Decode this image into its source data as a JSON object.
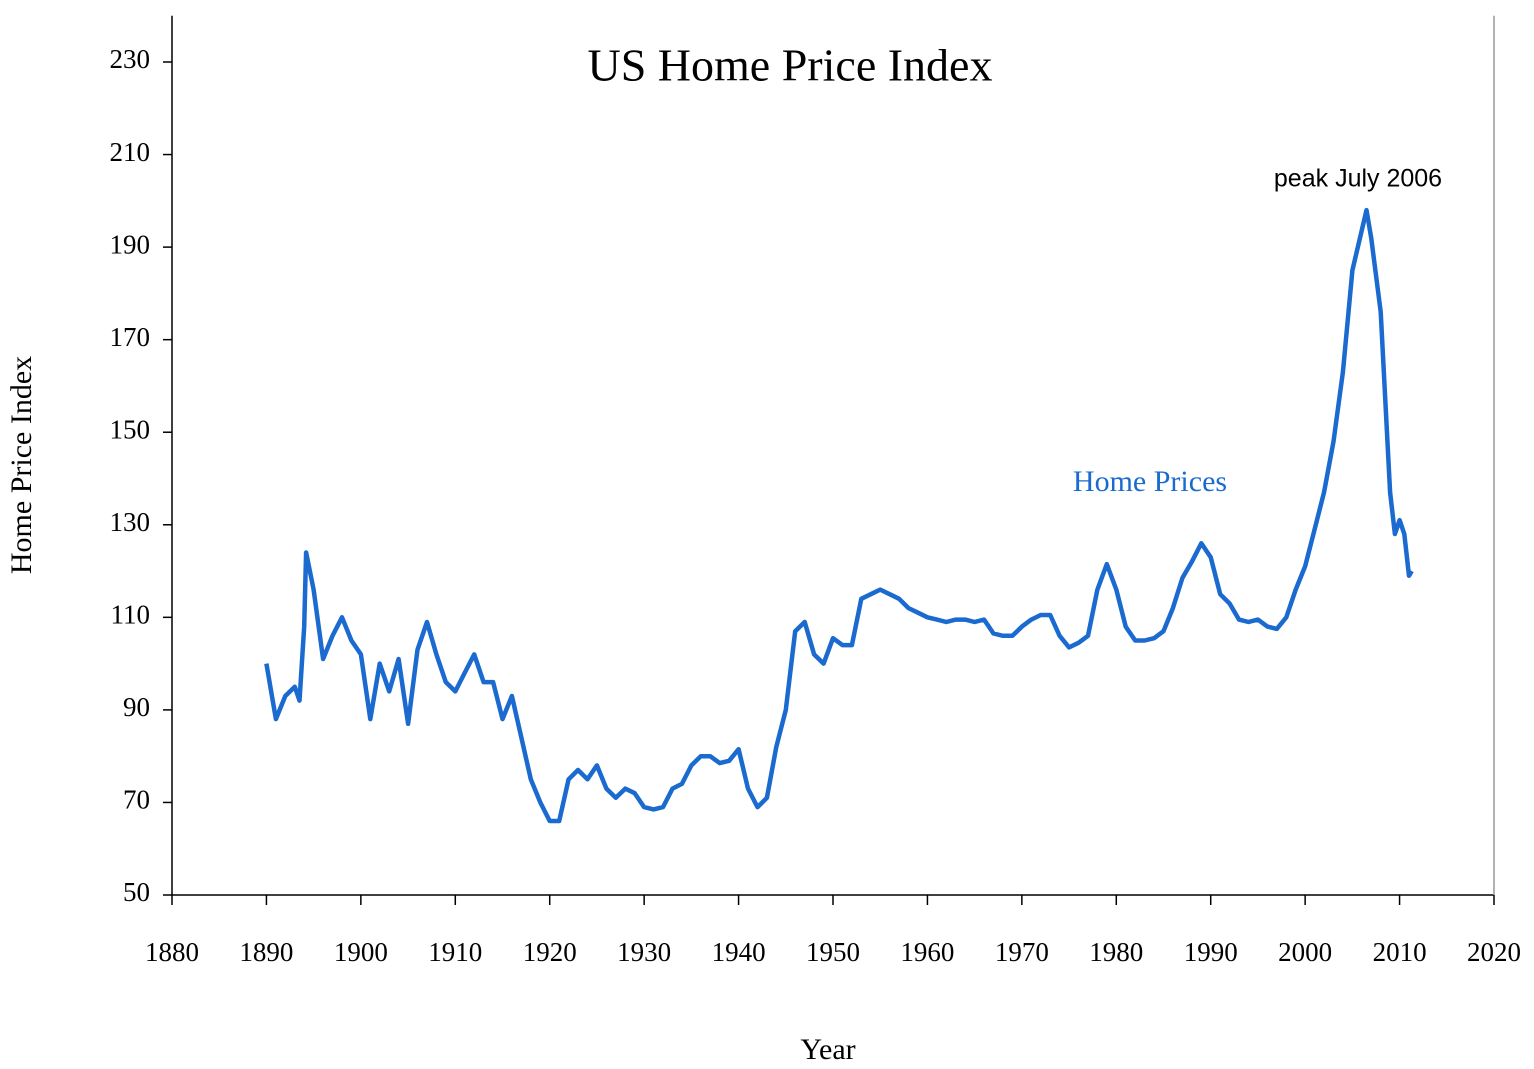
{
  "chart_data": {
    "type": "line",
    "title": "US Home Price Index",
    "x_label": "Year",
    "y_label": "Home Price Index",
    "annotations": [
      "peak July 2006",
      "Home Prices"
    ],
    "xlim": [
      1880,
      2020
    ],
    "xticks": [
      1880,
      1890,
      1900,
      1910,
      1920,
      1930,
      1940,
      1950,
      1960,
      1970,
      1980,
      1990,
      2000,
      2010,
      2020
    ],
    "ylim": [
      50,
      240
    ],
    "yticks": [
      50,
      70,
      90,
      110,
      130,
      150,
      170,
      190,
      210,
      230
    ],
    "grid": false,
    "series": [
      {
        "name": "Home Prices",
        "color": "#1a6ad0",
        "x": [
          1890,
          1891,
          1892,
          1893,
          1893.5,
          1894,
          1894.2,
          1895,
          1896,
          1897,
          1898,
          1899,
          1900,
          1901,
          1902,
          1903,
          1904,
          1905,
          1906,
          1907,
          1908,
          1909,
          1910,
          1911,
          1912,
          1913,
          1914,
          1915,
          1916,
          1917,
          1918,
          1919,
          1920,
          1921,
          1922,
          1923,
          1924,
          1925,
          1926,
          1927,
          1928,
          1929,
          1930,
          1931,
          1932,
          1933,
          1934,
          1935,
          1936,
          1937,
          1938,
          1939,
          1940,
          1941,
          1942,
          1943,
          1944,
          1945,
          1946,
          1947,
          1948,
          1949,
          1950,
          1951,
          1952,
          1953,
          1954,
          1955,
          1956,
          1957,
          1958,
          1959,
          1960,
          1961,
          1962,
          1963,
          1964,
          1965,
          1966,
          1967,
          1968,
          1969,
          1970,
          1971,
          1972,
          1973,
          1974,
          1975,
          1976,
          1977,
          1978,
          1979,
          1980,
          1981,
          1982,
          1983,
          1984,
          1985,
          1986,
          1987,
          1988,
          1989,
          1990,
          1991,
          1992,
          1993,
          1994,
          1995,
          1996,
          1997,
          1998,
          1999,
          2000,
          2001,
          2002,
          2003,
          2004,
          2005,
          2006.5,
          2007,
          2008,
          2009,
          2009.5,
          2010,
          2010.5,
          2011,
          2011.3
        ],
        "values": [
          100,
          88,
          93,
          95,
          92,
          108,
          124,
          116,
          101,
          106,
          110,
          105,
          102,
          88,
          100,
          94,
          101,
          87,
          103,
          109,
          102,
          96,
          94,
          98,
          102,
          96,
          96,
          88,
          93,
          84,
          75,
          70,
          66,
          66,
          75,
          77,
          75,
          78,
          73,
          71,
          73,
          72,
          69,
          68.5,
          69,
          73,
          74,
          78,
          80,
          80,
          78.5,
          79,
          81.5,
          73,
          69,
          71,
          82,
          90,
          107,
          109,
          102,
          100,
          105.5,
          104,
          104,
          114,
          115,
          116,
          115,
          114,
          112,
          111,
          110,
          109.5,
          109,
          109.5,
          109.5,
          109,
          109.5,
          106.5,
          106,
          106,
          108,
          109.5,
          110.5,
          110.5,
          106,
          103.5,
          104.5,
          106,
          116,
          121.5,
          116,
          108,
          105,
          105,
          105.5,
          107,
          112,
          118.5,
          122,
          126,
          123,
          115,
          113,
          109.5,
          109,
          109.5,
          108,
          107.5,
          110,
          116,
          121,
          129,
          137,
          148,
          163,
          185,
          198,
          192,
          176,
          137,
          128,
          131,
          128,
          119,
          120
        ]
      }
    ]
  }
}
